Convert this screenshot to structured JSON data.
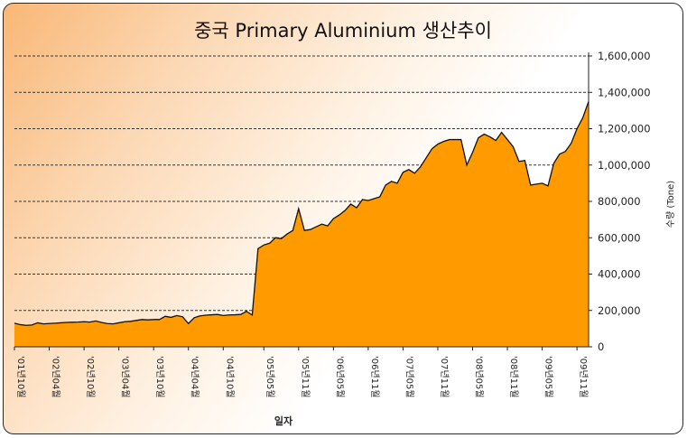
{
  "chart_data": {
    "type": "area",
    "title": "중국 Primary Aluminium 생산추이",
    "xlabel": "일자",
    "ylabel": "수량 (Tone)",
    "ylim": [
      0,
      1600000
    ],
    "y_ticks": [
      0,
      200000,
      400000,
      600000,
      800000,
      1000000,
      1200000,
      1400000,
      1600000
    ],
    "y_tick_labels": [
      "0",
      "200,000",
      "400,000",
      "600,000",
      "800,000",
      "1,000,000",
      "1,200,000",
      "1,400,000",
      "1,600,000"
    ],
    "grid": true,
    "legend": "none",
    "fill_color": "#ff9a00",
    "line_color": "#111111",
    "x_tick_labels": [
      "'01년10월",
      "'02년04월",
      "'02년10월",
      "'03년04월",
      "'03년10월",
      "'04년04월",
      "'04년10월",
      "'05년05월",
      "'05년11월",
      "'06년05월",
      "'06년11월",
      "'07년05월",
      "'07년11월",
      "'08년05월",
      "'08년11월",
      "'09년05월",
      "'09년11월"
    ],
    "x_tick_index": [
      0,
      6,
      12,
      18,
      24,
      30,
      36,
      43,
      49,
      55,
      61,
      67,
      73,
      79,
      85,
      91,
      97
    ],
    "series": [
      {
        "values": [
          130000,
          122000,
          118000,
          120000,
          132000,
          126000,
          128000,
          130000,
          132000,
          134000,
          135000,
          136000,
          138000,
          136000,
          142000,
          134000,
          128000,
          126000,
          132000,
          138000,
          140000,
          145000,
          150000,
          148000,
          150000,
          150000,
          168000,
          162000,
          172000,
          165000,
          128000,
          160000,
          170000,
          174000,
          176000,
          178000,
          172000,
          175000,
          176000,
          178000,
          195000,
          175000,
          540000,
          560000,
          570000,
          600000,
          595000,
          620000,
          640000,
          760000,
          640000,
          645000,
          660000,
          675000,
          665000,
          705000,
          725000,
          750000,
          785000,
          765000,
          810000,
          805000,
          815000,
          825000,
          890000,
          910000,
          900000,
          960000,
          975000,
          955000,
          990000,
          1040000,
          1090000,
          1115000,
          1130000,
          1140000,
          1140000,
          1140000,
          1000000,
          1070000,
          1150000,
          1170000,
          1155000,
          1135000,
          1180000,
          1140000,
          1100000,
          1020000,
          1025000,
          890000,
          895000,
          900000,
          885000,
          1010000,
          1060000,
          1075000,
          1120000,
          1200000,
          1260000,
          1350000
        ]
      }
    ]
  }
}
